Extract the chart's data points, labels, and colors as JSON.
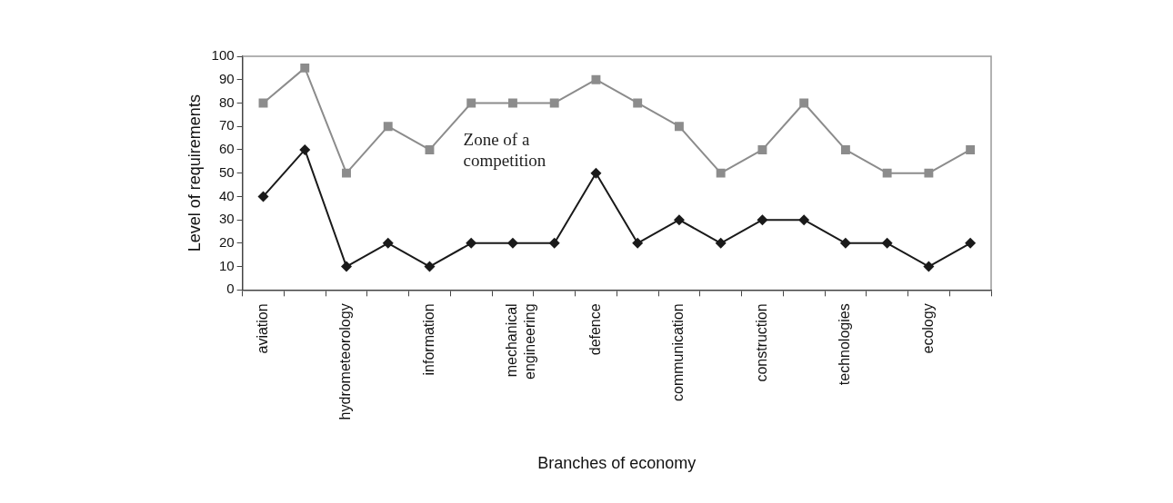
{
  "chart_data": {
    "type": "line",
    "xlabel": "Branches of economy",
    "ylabel": "Level of requirements",
    "categories": [
      "aviation",
      null,
      "hydrometeorology",
      null,
      "information",
      null,
      "mechanical engineering",
      null,
      "defence",
      null,
      "communication",
      null,
      "construction",
      null,
      "technologies",
      null,
      "ecology",
      null
    ],
    "series": [
      {
        "color": "#8c8c8c",
        "marker": "square",
        "values": [
          80,
          95,
          50,
          70,
          60,
          80,
          80,
          80,
          90,
          80,
          70,
          50,
          60,
          80,
          60,
          50,
          50,
          60
        ]
      },
      {
        "color": "#1a1a1a",
        "marker": "diamond",
        "values": [
          40,
          60,
          10,
          20,
          10,
          20,
          20,
          20,
          50,
          20,
          30,
          20,
          30,
          30,
          20,
          20,
          10,
          20
        ]
      }
    ],
    "ylim": [
      0,
      100
    ],
    "yticks": [
      0,
      10,
      20,
      30,
      40,
      50,
      60,
      70,
      80,
      90,
      100
    ],
    "grid": false,
    "legend": false,
    "line_style": "solid",
    "annotations": [
      "Zone of a competition"
    ]
  }
}
